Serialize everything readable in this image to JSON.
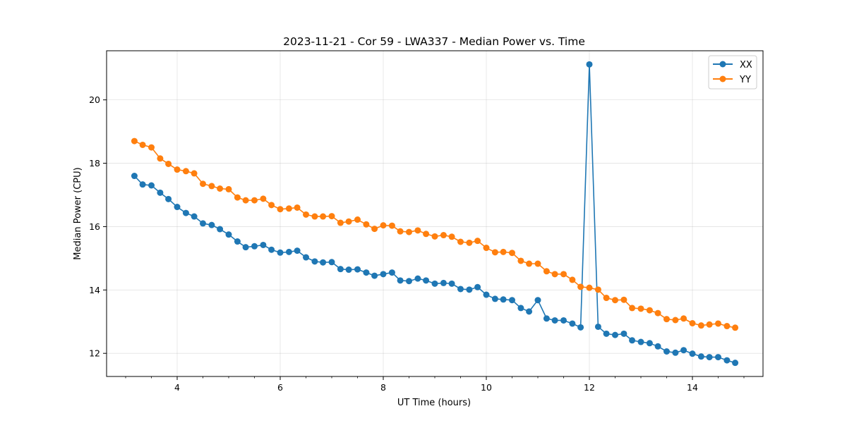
{
  "chart_data": {
    "type": "line",
    "title": "2023-11-21 - Cor 59 - LWA337 - Median Power vs. Time",
    "xlabel": "UT Time (hours)",
    "ylabel": "Median Power (CPU)",
    "xlim": [
      2.63,
      15.37
    ],
    "ylim": [
      11.27,
      21.55
    ],
    "xticks": [
      4,
      6,
      8,
      10,
      12,
      14
    ],
    "xtick_labels": [
      "4",
      "6",
      "8",
      "10",
      "12",
      "14"
    ],
    "yticks": [
      12,
      14,
      16,
      18,
      20
    ],
    "ytick_labels": [
      "12",
      "14",
      "16",
      "18",
      "20"
    ],
    "x_minor_step": 0.5,
    "grid": true,
    "legend_position": "top-right",
    "x": [
      3.17,
      3.33,
      3.5,
      3.67,
      3.83,
      4.0,
      4.17,
      4.33,
      4.5,
      4.67,
      4.83,
      5.0,
      5.17,
      5.33,
      5.5,
      5.67,
      5.83,
      6.0,
      6.17,
      6.33,
      6.5,
      6.67,
      6.83,
      7.0,
      7.17,
      7.33,
      7.5,
      7.67,
      7.83,
      8.0,
      8.17,
      8.33,
      8.5,
      8.67,
      8.83,
      9.0,
      9.17,
      9.33,
      9.5,
      9.67,
      9.83,
      10.0,
      10.17,
      10.33,
      10.5,
      10.67,
      10.83,
      11.0,
      11.17,
      11.33,
      11.5,
      11.67,
      11.83,
      12.0,
      12.17,
      12.33,
      12.5,
      12.67,
      12.83,
      13.0,
      13.17,
      13.33,
      13.5,
      13.67,
      13.83,
      14.0,
      14.17,
      14.33,
      14.5,
      14.67,
      14.83
    ],
    "series": [
      {
        "name": "XX",
        "color": "#1f77b4",
        "values": [
          17.6,
          17.33,
          17.3,
          17.07,
          16.87,
          16.62,
          16.43,
          16.32,
          16.1,
          16.05,
          15.92,
          15.75,
          15.53,
          15.35,
          15.38,
          15.42,
          15.27,
          15.18,
          15.2,
          15.24,
          15.03,
          14.9,
          14.87,
          14.88,
          14.66,
          14.64,
          14.65,
          14.55,
          14.45,
          14.5,
          14.55,
          14.3,
          14.28,
          14.36,
          14.3,
          14.2,
          14.22,
          14.2,
          14.03,
          14.01,
          14.09,
          13.85,
          13.72,
          13.7,
          13.68,
          13.43,
          13.32,
          13.68,
          13.1,
          13.04,
          13.04,
          12.94,
          12.82,
          21.12,
          12.84,
          12.62,
          12.58,
          12.62,
          12.41,
          12.36,
          12.32,
          12.22,
          12.06,
          12.02,
          12.1,
          11.99,
          11.9,
          11.88,
          11.88,
          11.78,
          11.7
        ]
      },
      {
        "name": "YY",
        "color": "#ff7f0e",
        "values": [
          18.7,
          18.58,
          18.5,
          18.15,
          17.98,
          17.8,
          17.75,
          17.68,
          17.35,
          17.28,
          17.2,
          17.18,
          16.92,
          16.83,
          16.83,
          16.88,
          16.68,
          16.55,
          16.57,
          16.6,
          16.38,
          16.32,
          16.32,
          16.33,
          16.12,
          16.16,
          16.22,
          16.07,
          15.93,
          16.04,
          16.03,
          15.85,
          15.83,
          15.88,
          15.77,
          15.69,
          15.73,
          15.68,
          15.52,
          15.49,
          15.55,
          15.33,
          15.19,
          15.2,
          15.17,
          14.92,
          14.83,
          14.83,
          14.59,
          14.5,
          14.5,
          14.32,
          14.1,
          14.07,
          14.01,
          13.75,
          13.68,
          13.69,
          13.43,
          13.41,
          13.36,
          13.27,
          13.08,
          13.05,
          13.1,
          12.95,
          12.88,
          12.91,
          12.94,
          12.86,
          12.81
        ]
      }
    ]
  }
}
